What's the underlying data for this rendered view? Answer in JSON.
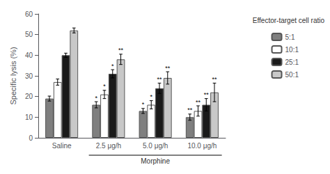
{
  "chart_data": {
    "type": "bar",
    "categories": [
      "Saline",
      "2.5 μg/h",
      "5.0 μg/h",
      "10.0 μg/h"
    ],
    "ylabel": "Specific lysis (%)",
    "ylim": [
      0,
      60
    ],
    "yticks": [
      0,
      10,
      20,
      30,
      40,
      50,
      60
    ],
    "grid": false,
    "legend": "right",
    "legend_title": "Effector-target cell ratio",
    "series": [
      {
        "name": "5:1",
        "color": "#7f7f7f",
        "values": [
          19,
          16,
          13,
          10
        ],
        "errors": [
          1.2,
          1.5,
          1.2,
          1.5
        ],
        "sig_labels": [
          null,
          "*",
          "*",
          "**"
        ]
      },
      {
        "name": "10:1",
        "color": "#ffffff",
        "values": [
          27,
          21,
          16,
          13
        ],
        "errors": [
          1.5,
          2.0,
          2.0,
          2.5
        ],
        "sig_labels": [
          null,
          "*",
          "*",
          "**"
        ]
      },
      {
        "name": "25:1",
        "color": "#1a1a1a",
        "values": [
          40,
          31,
          24,
          16
        ],
        "errors": [
          1.0,
          2.0,
          2.5,
          3.0
        ],
        "sig_labels": [
          null,
          "*",
          "**",
          "**"
        ]
      },
      {
        "name": "50:1",
        "color": "#c8c8c8",
        "values": [
          52,
          38,
          29,
          22
        ],
        "errors": [
          1.2,
          2.5,
          3.0,
          4.5
        ],
        "sig_labels": [
          null,
          "**",
          "**",
          "**"
        ]
      }
    ],
    "annotations": [
      {
        "text": "Morphine",
        "categories": [
          "2.5 μg/h",
          "5.0 μg/h",
          "10.0 μg/h"
        ]
      }
    ]
  }
}
